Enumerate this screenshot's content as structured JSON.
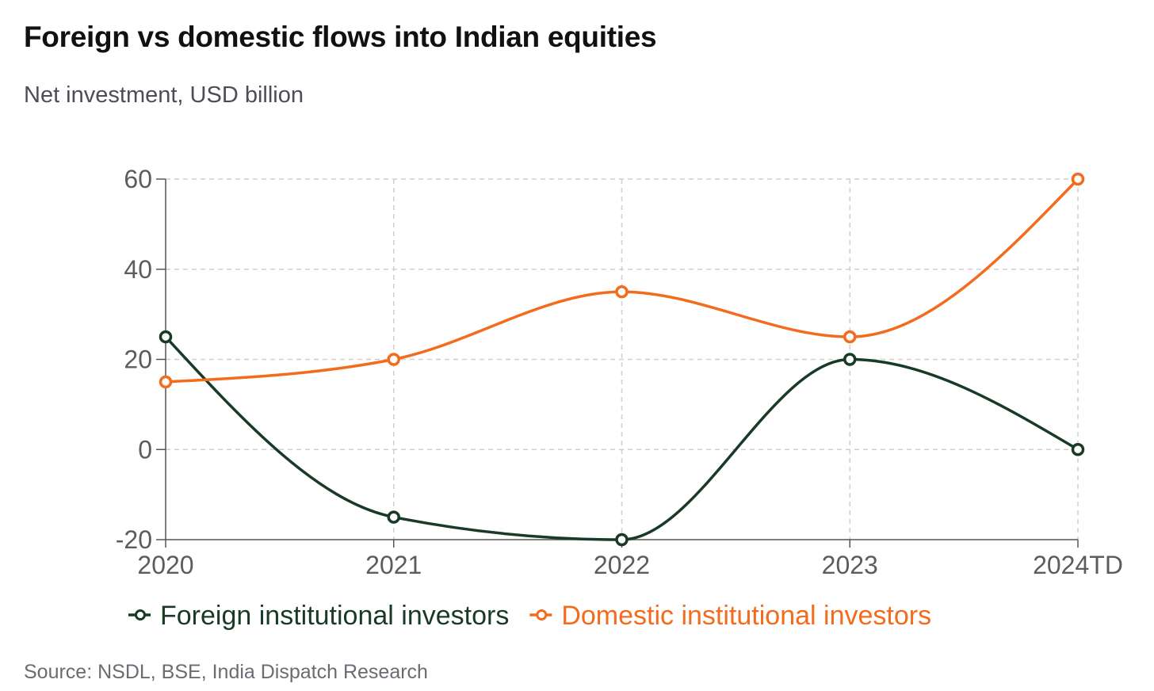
{
  "title": "Foreign vs domestic flows into Indian equities",
  "subtitle": "Net investment, USD billion",
  "source": "Source: NSDL, BSE, India Dispatch Research",
  "chart_data": {
    "type": "line",
    "categories": [
      "2020",
      "2021",
      "2022",
      "2023",
      "2024TD"
    ],
    "series": [
      {
        "name": "Foreign institutional investors",
        "values": [
          25,
          -15,
          -20,
          20,
          0
        ],
        "color": "#183a26"
      },
      {
        "name": "Domestic institutional investors",
        "values": [
          15,
          20,
          35,
          25,
          60
        ],
        "color": "#f36b1c"
      }
    ],
    "yticks": [
      60,
      40,
      20,
      0,
      -20
    ],
    "ylim": [
      -20,
      60
    ],
    "grid": true,
    "curve": "smooth",
    "legend_position": "bottom",
    "xlabel": "",
    "ylabel": ""
  }
}
